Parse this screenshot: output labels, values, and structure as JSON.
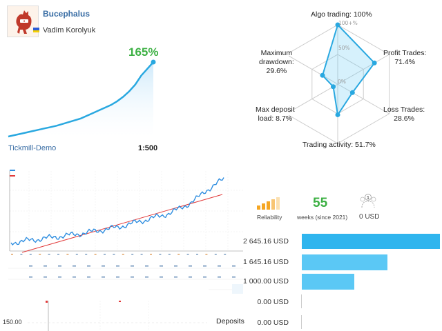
{
  "signal": {
    "name": "Bucephalus",
    "author": "Vadim Korolyuk",
    "gain": "165%",
    "broker": "Tickmill-Demo",
    "leverage": "1:500"
  },
  "radar": {
    "scale_max": "100+%",
    "scale_mid": "50%",
    "scale_min": "0%",
    "labels": {
      "algo": "Algo trading: 100%",
      "profit_1": "Profit Trades:",
      "profit_2": "71.4%",
      "loss_1": "Loss Trades:",
      "loss_2": "28.6%",
      "activity": "Trading activity: 51.7%",
      "deposit_1": "Max deposit",
      "deposit_2": "load: 8.7%",
      "drawdown_1": "Maximum",
      "drawdown_2": "drawdown:",
      "drawdown_3": "29.6%"
    },
    "values": {
      "algo_trading": 100,
      "profit_trades": 71.4,
      "loss_trades": 28.6,
      "trading_activity": 51.7,
      "max_deposit_load": 8.7,
      "maximum_drawdown": 29.6
    }
  },
  "reliability": {
    "label": "Reliability",
    "weeks": "55",
    "weeks_label": "weeks (since 2021)",
    "subscribers_count": "1",
    "subscribers_value": "0 USD"
  },
  "balance_rows": [
    {
      "amount": "2 645.16 USD",
      "fraction": 1.0
    },
    {
      "amount": "1 645.16 USD",
      "fraction": 0.622
    },
    {
      "amount": "1 000.00 USD",
      "fraction": 0.378
    },
    {
      "amount": "0.00 USD",
      "fraction": 0
    },
    {
      "amount": "0.00 USD",
      "fraction": 0
    }
  ],
  "deposits_label": "Deposits",
  "lower_chart_value": "150.00",
  "colors": {
    "link": "#3a6ea5",
    "gain": "#3cb043",
    "bar": "#5bc8f5",
    "radar_line": "#29a8e0",
    "reliability_orange": "#f5a623"
  },
  "chart_data": {
    "type": "line",
    "title": "",
    "series": [
      {
        "values": [
          0,
          3,
          6,
          9,
          12,
          15,
          18,
          21,
          24,
          28,
          32,
          36,
          40,
          46,
          52,
          58,
          64,
          70,
          78,
          88,
          100,
          115,
          135,
          150,
          165
        ]
      }
    ]
  }
}
